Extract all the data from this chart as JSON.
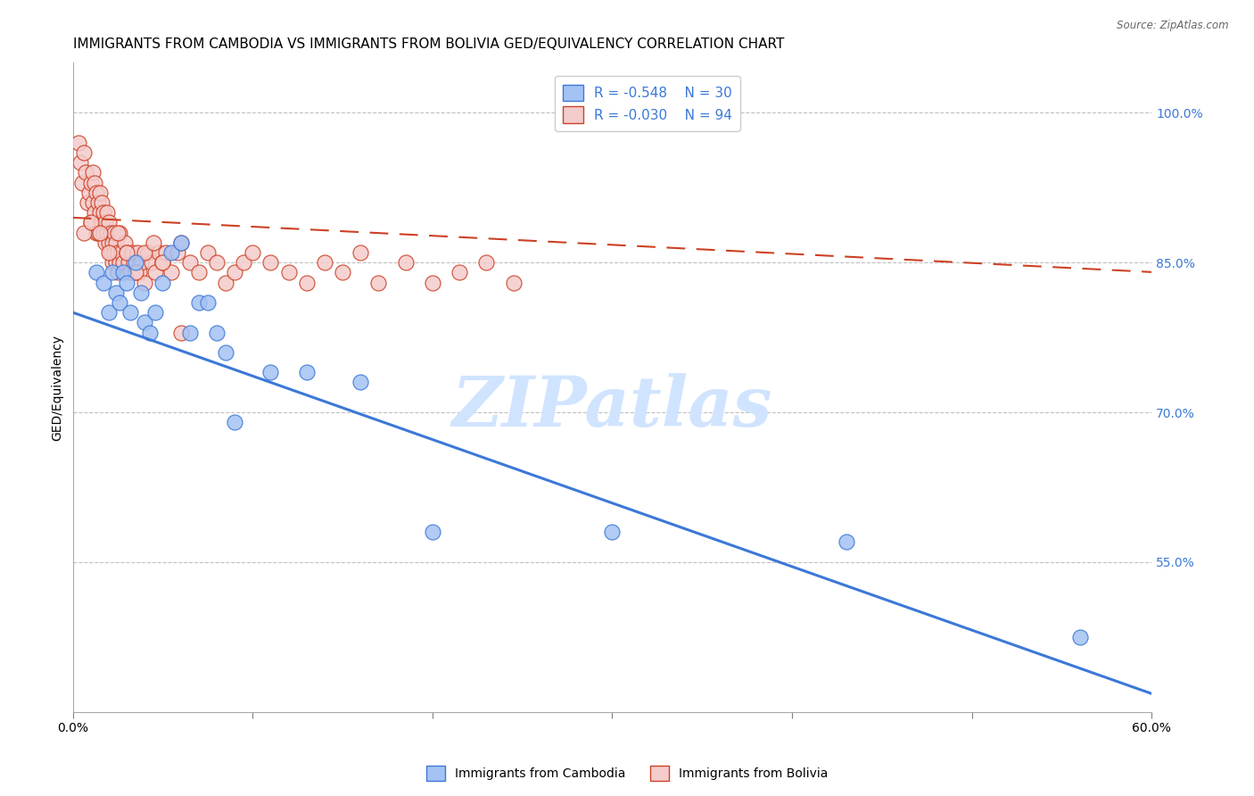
{
  "title": "IMMIGRANTS FROM CAMBODIA VS IMMIGRANTS FROM BOLIVIA GED/EQUIVALENCY CORRELATION CHART",
  "source": "Source: ZipAtlas.com",
  "ylabel": "GED/Equivalency",
  "xlabel": "",
  "xlim": [
    0.0,
    0.6
  ],
  "ylim": [
    0.4,
    1.05
  ],
  "yticks": [
    0.55,
    0.7,
    0.85,
    1.0
  ],
  "ytick_labels": [
    "55.0%",
    "70.0%",
    "85.0%",
    "100.0%"
  ],
  "xticks": [
    0.0,
    0.1,
    0.2,
    0.3,
    0.4,
    0.5,
    0.6
  ],
  "xtick_labels": [
    "0.0%",
    "",
    "",
    "",
    "",
    "",
    "60.0%"
  ],
  "legend_r1": "-0.548",
  "legend_n1": "30",
  "legend_r2": "-0.030",
  "legend_n2": "94",
  "color_blue": "#a4c2f4",
  "color_pink": "#f4cccc",
  "color_blue_line": "#3c78d8",
  "color_pink_line": "#cc4125",
  "color_grid": "#b0b0b0",
  "title_fontsize": 11,
  "axis_label_fontsize": 10,
  "tick_fontsize": 9,
  "watermark": "ZIPatlas",
  "blue_line_x0": 0.0,
  "blue_line_y0": 0.8,
  "blue_line_x1": 0.605,
  "blue_line_y1": 0.415,
  "pink_line_x0": 0.0,
  "pink_line_y0": 0.895,
  "pink_line_x1": 0.605,
  "pink_line_y1": 0.84,
  "blue_scatter_x": [
    0.013,
    0.017,
    0.02,
    0.022,
    0.024,
    0.026,
    0.028,
    0.03,
    0.032,
    0.035,
    0.038,
    0.04,
    0.043,
    0.046,
    0.05,
    0.055,
    0.06,
    0.065,
    0.07,
    0.075,
    0.08,
    0.085,
    0.09,
    0.11,
    0.13,
    0.16,
    0.2,
    0.3,
    0.43,
    0.56
  ],
  "blue_scatter_y": [
    0.84,
    0.83,
    0.8,
    0.84,
    0.82,
    0.81,
    0.84,
    0.83,
    0.8,
    0.85,
    0.82,
    0.79,
    0.78,
    0.8,
    0.83,
    0.86,
    0.87,
    0.78,
    0.81,
    0.81,
    0.78,
    0.76,
    0.69,
    0.74,
    0.74,
    0.73,
    0.58,
    0.58,
    0.57,
    0.475
  ],
  "pink_scatter_x": [
    0.003,
    0.004,
    0.005,
    0.006,
    0.007,
    0.008,
    0.009,
    0.01,
    0.01,
    0.011,
    0.011,
    0.012,
    0.012,
    0.013,
    0.013,
    0.014,
    0.014,
    0.015,
    0.015,
    0.016,
    0.016,
    0.017,
    0.017,
    0.018,
    0.018,
    0.019,
    0.019,
    0.02,
    0.02,
    0.021,
    0.021,
    0.022,
    0.022,
    0.023,
    0.023,
    0.024,
    0.024,
    0.025,
    0.025,
    0.026,
    0.026,
    0.027,
    0.028,
    0.029,
    0.03,
    0.031,
    0.032,
    0.033,
    0.034,
    0.035,
    0.036,
    0.037,
    0.038,
    0.04,
    0.042,
    0.044,
    0.046,
    0.048,
    0.05,
    0.052,
    0.055,
    0.058,
    0.06,
    0.065,
    0.07,
    0.075,
    0.08,
    0.085,
    0.09,
    0.095,
    0.1,
    0.11,
    0.12,
    0.13,
    0.14,
    0.15,
    0.16,
    0.17,
    0.185,
    0.2,
    0.215,
    0.23,
    0.245,
    0.006,
    0.01,
    0.015,
    0.02,
    0.025,
    0.03,
    0.035,
    0.04,
    0.045,
    0.05,
    0.06
  ],
  "pink_scatter_y": [
    0.97,
    0.95,
    0.93,
    0.96,
    0.94,
    0.91,
    0.92,
    0.93,
    0.89,
    0.94,
    0.91,
    0.93,
    0.9,
    0.92,
    0.88,
    0.91,
    0.88,
    0.92,
    0.9,
    0.91,
    0.89,
    0.9,
    0.88,
    0.89,
    0.87,
    0.9,
    0.88,
    0.89,
    0.87,
    0.88,
    0.86,
    0.87,
    0.85,
    0.88,
    0.86,
    0.87,
    0.85,
    0.86,
    0.84,
    0.85,
    0.88,
    0.86,
    0.85,
    0.87,
    0.86,
    0.85,
    0.84,
    0.86,
    0.85,
    0.84,
    0.86,
    0.84,
    0.85,
    0.83,
    0.86,
    0.85,
    0.84,
    0.86,
    0.85,
    0.86,
    0.84,
    0.86,
    0.87,
    0.85,
    0.84,
    0.86,
    0.85,
    0.83,
    0.84,
    0.85,
    0.86,
    0.85,
    0.84,
    0.83,
    0.85,
    0.84,
    0.86,
    0.83,
    0.85,
    0.83,
    0.84,
    0.85,
    0.83,
    0.88,
    0.89,
    0.88,
    0.86,
    0.88,
    0.86,
    0.84,
    0.86,
    0.87,
    0.85,
    0.78
  ]
}
